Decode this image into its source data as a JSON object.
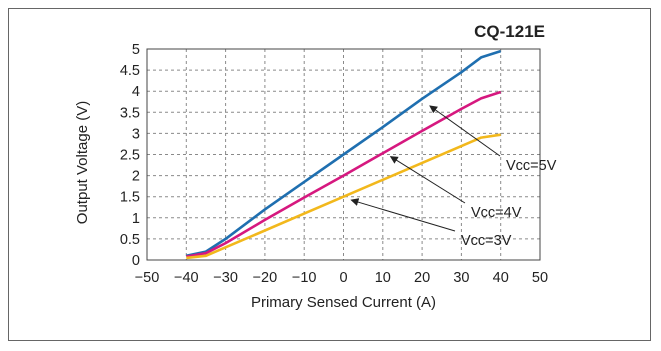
{
  "chart_data": {
    "type": "line",
    "title": "CQ-121E",
    "xlabel": "Primary Sensed Current (A)",
    "ylabel": "Output Voltage (V)",
    "xlim": [
      -50,
      50
    ],
    "ylim": [
      0,
      5
    ],
    "xticks": [
      -50,
      -40,
      -30,
      -20,
      -10,
      0,
      10,
      20,
      30,
      40,
      50
    ],
    "xtick_labels": [
      "−50",
      "−40",
      "−30",
      "−20",
      "−10",
      "0",
      "10",
      "20",
      "30",
      "40",
      "50"
    ],
    "yticks": [
      0,
      0.5,
      1,
      1.5,
      2,
      2.5,
      3,
      3.5,
      4,
      4.5,
      5
    ],
    "ytick_labels": [
      "0",
      "0.5",
      "1",
      "1.5",
      "2",
      "2.5",
      "3",
      "3.5",
      "4",
      "4.5",
      "5"
    ],
    "grid": true,
    "legend": "none",
    "series": [
      {
        "name": "Vcc=5V",
        "color": "#1f6fb0",
        "x": [
          -40,
          -35,
          -30,
          -20,
          -10,
          0,
          10,
          20,
          30,
          35,
          40
        ],
        "y": [
          0.1,
          0.2,
          0.5,
          1.2,
          1.85,
          2.5,
          3.15,
          3.82,
          4.45,
          4.8,
          4.95
        ]
      },
      {
        "name": "Vcc=4V",
        "color": "#d6187f",
        "x": [
          -40,
          -35,
          -30,
          -20,
          -10,
          0,
          10,
          20,
          30,
          35,
          40
        ],
        "y": [
          0.08,
          0.16,
          0.4,
          0.95,
          1.48,
          2.0,
          2.53,
          3.06,
          3.58,
          3.83,
          3.98
        ]
      },
      {
        "name": "Vcc=3V",
        "color": "#f2b81c",
        "x": [
          -40,
          -35,
          -30,
          -20,
          -10,
          0,
          10,
          20,
          30,
          35,
          40
        ],
        "y": [
          0.05,
          0.1,
          0.3,
          0.7,
          1.1,
          1.5,
          1.9,
          2.3,
          2.7,
          2.9,
          2.97
        ]
      }
    ],
    "annotations": [
      {
        "text": "Vcc=5V",
        "series": "Vcc=5V",
        "x": 22,
        "y": 3.65
      },
      {
        "text": "Vcc=4V",
        "series": "Vcc=4V",
        "x": 12,
        "y": 2.45
      },
      {
        "text": "Vcc=3V",
        "series": "Vcc=3V",
        "x": 2,
        "y": 1.42
      }
    ]
  }
}
